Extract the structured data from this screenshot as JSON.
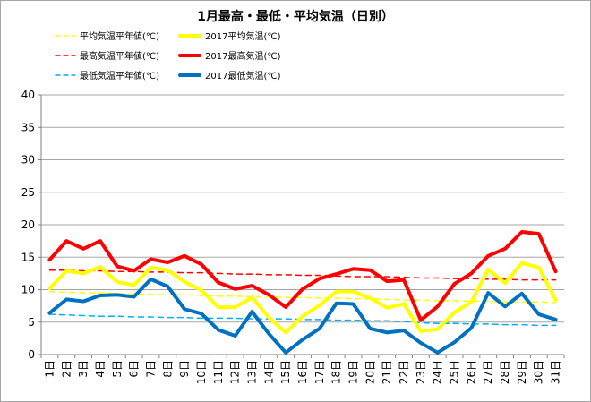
{
  "chart_data": {
    "type": "line",
    "title": "1月最高・最低・平均気温（日別）",
    "xlabel": "",
    "ylabel": "",
    "ylim": [
      0,
      40
    ],
    "yticks": [
      0,
      5,
      10,
      15,
      20,
      25,
      30,
      35,
      40
    ],
    "grid": true,
    "legend_position": "top",
    "categories": [
      "1日",
      "2日",
      "3日",
      "4日",
      "5日",
      "6日",
      "7日",
      "8日",
      "9日",
      "10日",
      "11日",
      "12日",
      "13日",
      "14日",
      "15日",
      "16日",
      "17日",
      "18日",
      "19日",
      "20日",
      "21日",
      "22日",
      "23日",
      "24日",
      "25日",
      "26日",
      "27日",
      "28日",
      "29日",
      "30日",
      "31日"
    ],
    "series": [
      {
        "name": "平均気温平年値(℃)",
        "color": "#ffff00",
        "style": "dashed",
        "width": 1.5,
        "values": [
          9.7,
          9.6,
          9.5,
          9.5,
          9.4,
          9.3,
          9.3,
          9.2,
          9.2,
          9.1,
          9.0,
          9.0,
          8.9,
          8.9,
          8.8,
          8.8,
          8.7,
          8.7,
          8.6,
          8.6,
          8.5,
          8.4,
          8.4,
          8.3,
          8.3,
          8.2,
          8.2,
          8.1,
          8.1,
          8.1,
          8.0
        ]
      },
      {
        "name": "2017平均気温(℃)",
        "color": "#ffff00",
        "style": "solid",
        "width": 4,
        "values": [
          10.2,
          12.9,
          12.5,
          13.5,
          11.2,
          10.7,
          13.4,
          13.0,
          11.2,
          9.9,
          7.3,
          7.3,
          8.8,
          5.7,
          3.4,
          5.9,
          7.6,
          9.7,
          9.7,
          8.7,
          7.2,
          7.8,
          3.6,
          3.9,
          6.5,
          8.1,
          13.1,
          11.0,
          14.1,
          13.4,
          8.4
        ]
      },
      {
        "name": "最高気温平年値(℃)",
        "color": "#ff0000",
        "style": "dashed",
        "width": 1.5,
        "values": [
          13.0,
          13.0,
          12.9,
          12.9,
          12.8,
          12.8,
          12.7,
          12.7,
          12.6,
          12.6,
          12.5,
          12.4,
          12.4,
          12.3,
          12.3,
          12.2,
          12.2,
          12.1,
          12.0,
          12.0,
          12.0,
          11.9,
          11.8,
          11.8,
          11.7,
          11.7,
          11.6,
          11.6,
          11.5,
          11.5,
          11.5
        ]
      },
      {
        "name": "2017最高気温(℃)",
        "color": "#ff0000",
        "style": "solid",
        "width": 4,
        "values": [
          14.6,
          17.5,
          16.3,
          17.5,
          13.6,
          12.9,
          14.7,
          14.2,
          15.2,
          13.9,
          11.1,
          10.1,
          10.6,
          9.2,
          7.3,
          10.1,
          11.7,
          12.4,
          13.2,
          13.0,
          11.3,
          11.5,
          5.3,
          7.4,
          10.9,
          12.5,
          15.2,
          16.3,
          18.9,
          18.6,
          12.8
        ]
      },
      {
        "name": "最低気温平年値(℃)",
        "color": "#00b0f0",
        "style": "dashed",
        "width": 1.5,
        "values": [
          6.2,
          6.1,
          6.0,
          5.9,
          5.9,
          5.8,
          5.8,
          5.7,
          5.7,
          5.6,
          5.6,
          5.6,
          5.5,
          5.5,
          5.5,
          5.4,
          5.4,
          5.3,
          5.3,
          5.2,
          5.2,
          5.1,
          4.9,
          4.8,
          4.8,
          4.7,
          4.7,
          4.6,
          4.6,
          4.5,
          4.5
        ]
      },
      {
        "name": "2017最低気温(℃)",
        "color": "#0070c0",
        "style": "solid",
        "width": 4,
        "values": [
          6.4,
          8.5,
          8.2,
          9.1,
          9.2,
          8.9,
          11.6,
          10.5,
          7.0,
          6.3,
          3.8,
          2.9,
          6.6,
          3.2,
          0.3,
          2.3,
          4.0,
          7.9,
          7.8,
          4.0,
          3.4,
          3.7,
          1.8,
          0.3,
          1.9,
          4.1,
          9.5,
          7.4,
          9.4,
          6.2,
          5.4
        ]
      }
    ]
  }
}
